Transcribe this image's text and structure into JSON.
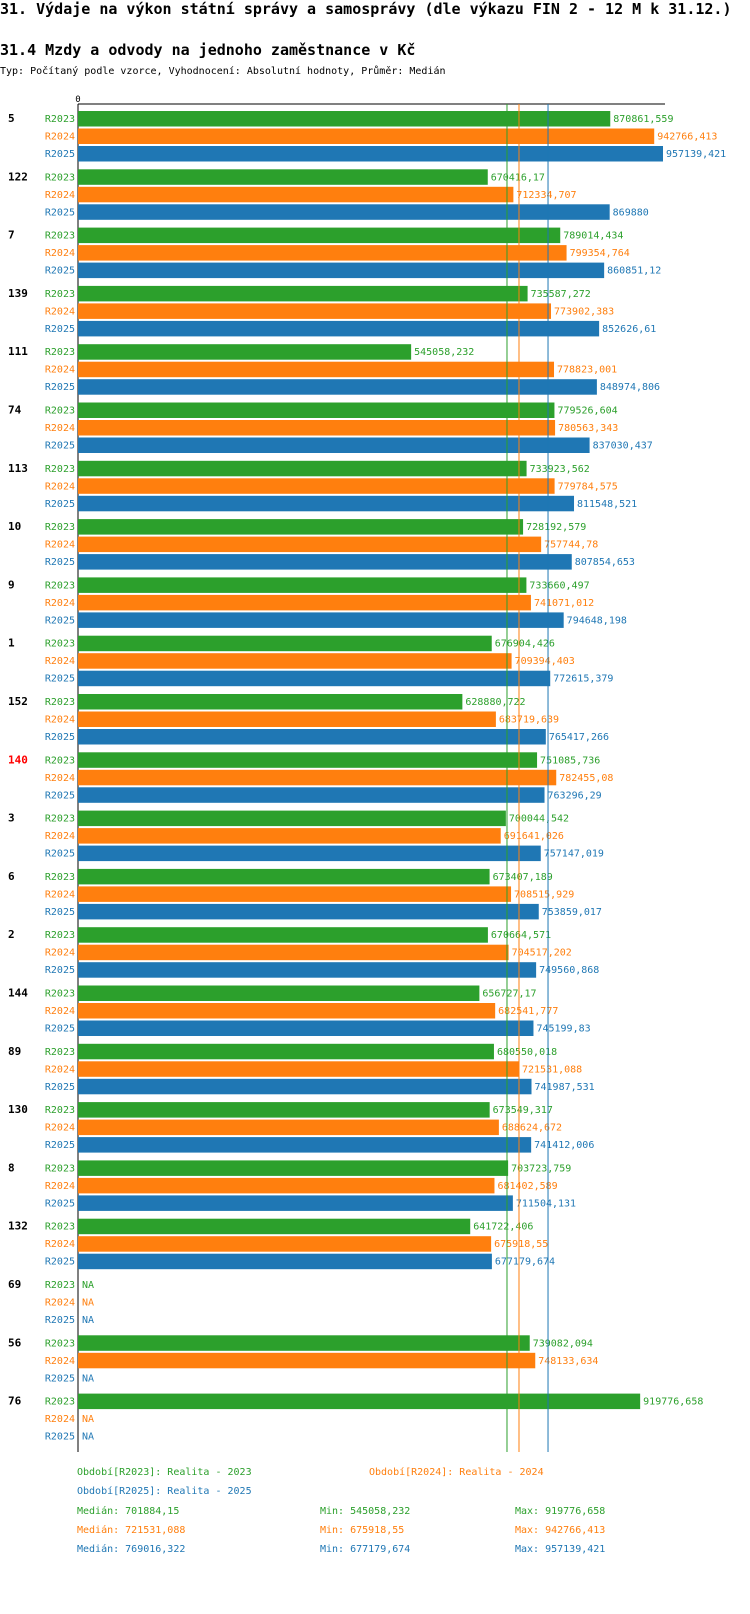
{
  "title": "31. Výdaje na výkon státní správy a samosprávy (dle výkazu FIN 2 - 12 M k 31.12.)",
  "subtitle": "31.4 Mzdy a odvody na jednoho zaměstnance v Kč",
  "typ_line": "Typ: Počítaný podle vzorce, Vyhodnocení: Absolutní hodnoty, Průměr: Medián",
  "colors": {
    "R2023": "#2ca02c",
    "R2024": "#ff7f0e",
    "R2025": "#1f77b4",
    "highlight": "#ff0000"
  },
  "chart_data": {
    "type": "bar",
    "orientation": "horizontal",
    "axis_zero_label": "0",
    "xlim": [
      0,
      957139.421
    ],
    "series_names": [
      "R2023",
      "R2024",
      "R2025"
    ],
    "na_label": "NA",
    "highlighted_category": "140",
    "categories": [
      {
        "name": "5",
        "values": [
          "870861,559",
          "942766,413",
          "957139,421"
        ]
      },
      {
        "name": "122",
        "values": [
          "670416,17",
          "712334,707",
          "869880"
        ]
      },
      {
        "name": "7",
        "values": [
          "789014,434",
          "799354,764",
          "860851,12"
        ]
      },
      {
        "name": "139",
        "values": [
          "735587,272",
          "773902,383",
          "852626,61"
        ]
      },
      {
        "name": "111",
        "values": [
          "545058,232",
          "778823,001",
          "848974,806"
        ]
      },
      {
        "name": "74",
        "values": [
          "779526,604",
          "780563,343",
          "837030,437"
        ]
      },
      {
        "name": "113",
        "values": [
          "733923,562",
          "779784,575",
          "811548,521"
        ]
      },
      {
        "name": "10",
        "values": [
          "728192,579",
          "757744,78",
          "807854,653"
        ]
      },
      {
        "name": "9",
        "values": [
          "733660,497",
          "741071,012",
          "794648,198"
        ]
      },
      {
        "name": "1",
        "values": [
          "676904,426",
          "709394,403",
          "772615,379"
        ]
      },
      {
        "name": "152",
        "values": [
          "628880,722",
          "683719,639",
          "765417,266"
        ]
      },
      {
        "name": "140",
        "values": [
          "751085,736",
          "782455,08",
          "763296,29"
        ]
      },
      {
        "name": "3",
        "values": [
          "700044,542",
          "691641,026",
          "757147,019"
        ]
      },
      {
        "name": "6",
        "values": [
          "673407,189",
          "708515,929",
          "753859,017"
        ]
      },
      {
        "name": "2",
        "values": [
          "670664,571",
          "704517,202",
          "749560,868"
        ]
      },
      {
        "name": "144",
        "values": [
          "656727,17",
          "682541,777",
          "745199,83"
        ]
      },
      {
        "name": "89",
        "values": [
          "680550,018",
          "721531,088",
          "741987,531"
        ]
      },
      {
        "name": "130",
        "values": [
          "673549,317",
          "688624,672",
          "741412,006"
        ]
      },
      {
        "name": "8",
        "values": [
          "703723,759",
          "681402,589",
          "711504,131"
        ]
      },
      {
        "name": "132",
        "values": [
          "641722,406",
          "675918,55",
          "677179,674"
        ]
      },
      {
        "name": "69",
        "values": [
          null,
          null,
          null
        ]
      },
      {
        "name": "56",
        "values": [
          "739082,094",
          "748133,634",
          null
        ]
      },
      {
        "name": "76",
        "values": [
          "919776,658",
          null,
          null
        ]
      }
    ],
    "median_lines": {
      "R2023": 701884.15,
      "R2024": 721531.088,
      "R2025": 769016.322
    }
  },
  "legend": {
    "period_2023": "Období[R2023]: Realita - 2023",
    "period_2024": "Období[R2024]: Realita - 2024",
    "period_2025": "Období[R2025]: Realita - 2025",
    "stats": [
      {
        "median": "Medián: 701884,15",
        "min": "Min: 545058,232",
        "max": "Max: 919776,658"
      },
      {
        "median": "Medián: 721531,088",
        "min": "Min: 675918,55",
        "max": "Max: 942766,413"
      },
      {
        "median": "Medián: 769016,322",
        "min": "Min: 677179,674",
        "max": "Max: 957139,421"
      }
    ]
  }
}
